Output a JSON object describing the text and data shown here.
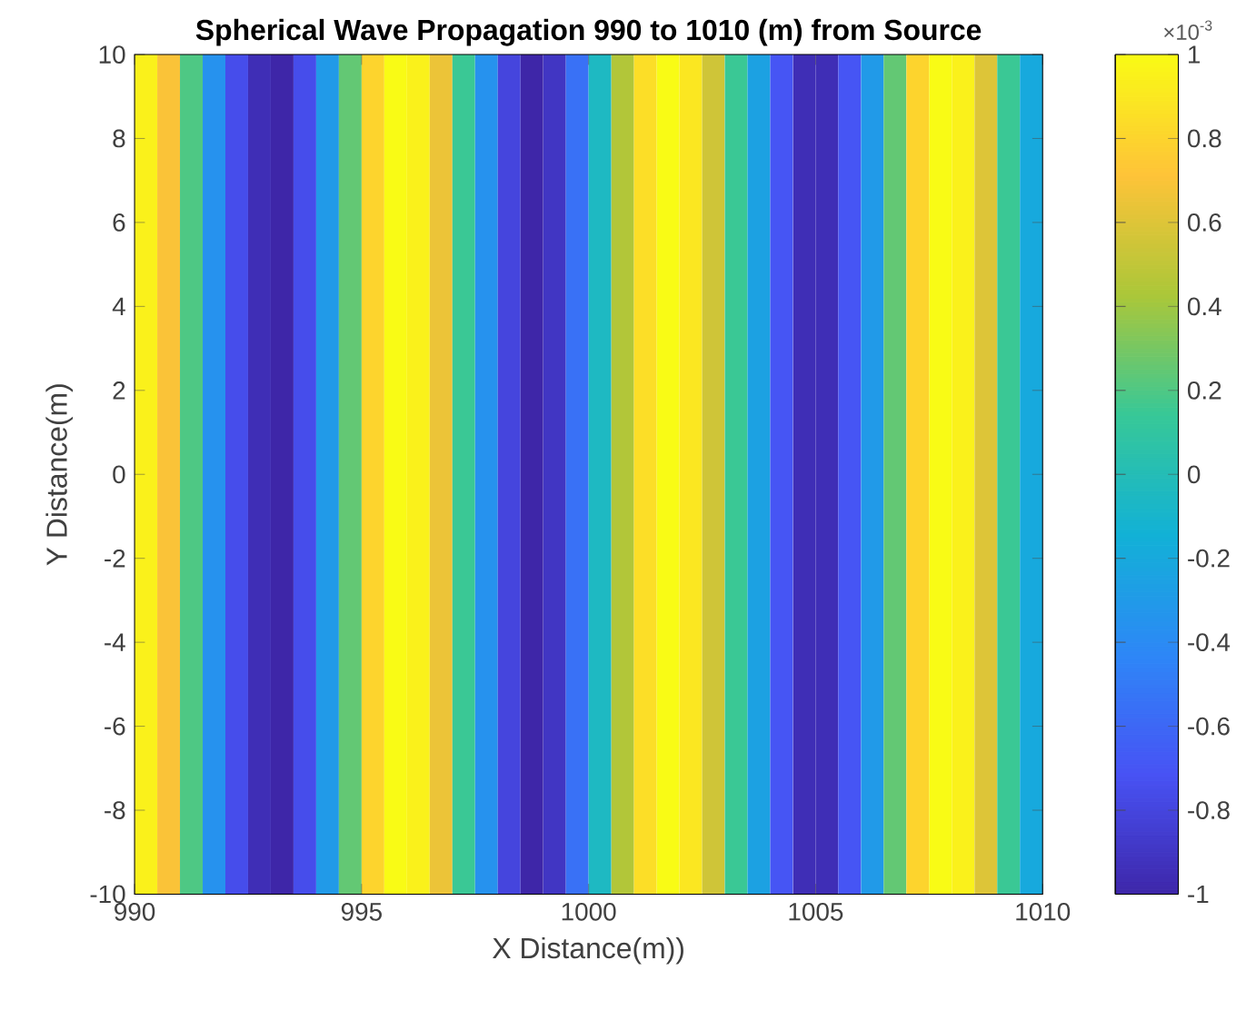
{
  "chart_data": {
    "type": "heatmap",
    "title": "Spherical Wave Propagation 990 to 1010 (m) from Source",
    "xlabel": "X Distance(m))",
    "ylabel": "Y Distance(m)",
    "x": [
      990.25,
      990.75,
      991.25,
      991.75,
      992.25,
      992.75,
      993.25,
      993.75,
      994.25,
      994.75,
      995.25,
      995.75,
      996.25,
      996.75,
      997.25,
      997.75,
      998.25,
      998.75,
      999.25,
      999.75,
      1000.25,
      1000.75,
      1001.25,
      1001.75,
      1002.25,
      1002.75,
      1003.25,
      1003.75,
      1004.25,
      1004.75,
      1005.25,
      1005.75,
      1006.25,
      1006.75,
      1007.25,
      1007.75,
      1008.25,
      1008.75,
      1009.25,
      1009.75
    ],
    "cells": [
      [
        0.95,
        0.7,
        0.2,
        -0.35,
        -0.75,
        -0.95,
        -1,
        -0.75,
        -0.3,
        0.25,
        0.8,
        1,
        0.95,
        0.65,
        0.15,
        -0.35,
        -0.8,
        -1,
        -0.9,
        -0.55,
        -0.05,
        0.45,
        0.85,
        1,
        0.9,
        0.55,
        0.15,
        -0.25,
        -0.7,
        -0.95,
        -0.95,
        -0.7,
        -0.3,
        0.25,
        0.8,
        1,
        0.95,
        0.6,
        0.15,
        -0.2
      ]
    ],
    "xlim": [
      990,
      1010
    ],
    "xticks": [
      990,
      995,
      1000,
      1005,
      1010
    ],
    "ylim": [
      -10,
      10
    ],
    "yticks": [
      -10,
      -8,
      -6,
      -4,
      -2,
      0,
      2,
      4,
      6,
      8,
      10
    ],
    "clim": [
      -1,
      1
    ],
    "cticks": [
      -1,
      -0.8,
      -0.6,
      -0.4,
      -0.2,
      0,
      0.2,
      0.4,
      0.6,
      0.8,
      1
    ],
    "annotations": [
      "×10$^{-3}$"
    ]
  }
}
